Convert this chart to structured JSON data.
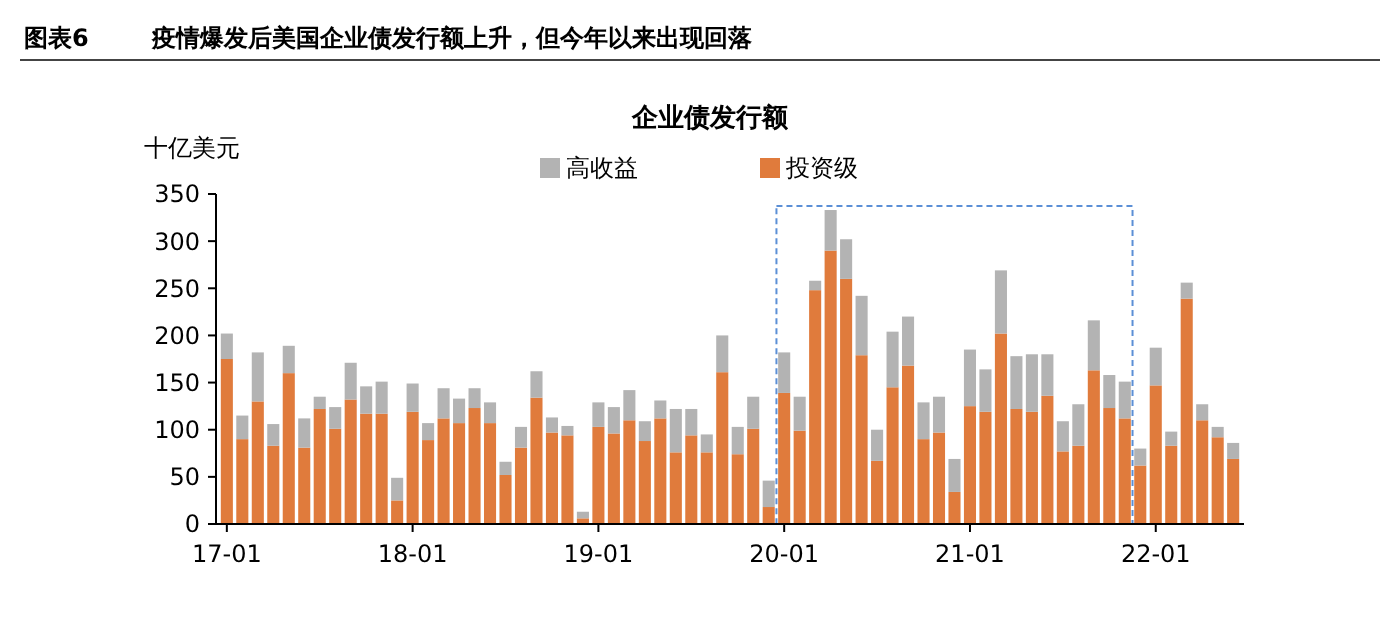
{
  "chart_data": {
    "type": "bar",
    "title": "企业债发行额",
    "ylabel": "十亿美元",
    "annotations": [
      "图表6",
      "疫情爆发后美国企业债发行额上升，但今年以来出现回落"
    ],
    "categories": [
      "17-01",
      null,
      null,
      null,
      null,
      null,
      null,
      null,
      null,
      null,
      null,
      null,
      "18-01",
      null,
      null,
      null,
      null,
      null,
      null,
      null,
      null,
      null,
      null,
      null,
      "19-01",
      null,
      null,
      null,
      null,
      null,
      null,
      null,
      null,
      null,
      null,
      null,
      "20-01",
      null,
      null,
      null,
      null,
      null,
      null,
      null,
      null,
      null,
      null,
      null,
      "21-01",
      null,
      null,
      null,
      null,
      null,
      null,
      null,
      null,
      null,
      null,
      null,
      "22-01",
      null,
      null,
      null,
      null,
      null
    ],
    "stacked": true,
    "series": [
      {
        "name": "投资级",
        "color": "#e07b3c",
        "values": [
          175,
          90,
          130,
          83,
          160,
          81,
          122,
          101,
          132,
          117,
          117,
          25,
          119,
          89,
          112,
          107,
          123,
          107,
          52,
          81,
          134,
          97,
          94,
          6,
          103,
          96,
          110,
          88,
          112,
          76,
          94,
          76,
          161,
          74,
          101,
          18,
          139,
          99,
          248,
          290,
          260,
          179,
          67,
          145,
          168,
          90,
          97,
          34,
          125,
          119,
          202,
          122,
          119,
          136,
          77,
          83,
          163,
          123,
          112,
          62,
          147,
          83,
          239,
          110,
          92,
          69
        ]
      },
      {
        "name": "高收益",
        "color": "#b3b3b3",
        "values": [
          27,
          25,
          52,
          23,
          29,
          31,
          13,
          23,
          39,
          29,
          34,
          24,
          30,
          18,
          32,
          26,
          21,
          22,
          14,
          22,
          28,
          16,
          10,
          7,
          26,
          28,
          32,
          21,
          19,
          46,
          28,
          19,
          39,
          29,
          34,
          28,
          43,
          36,
          10,
          43,
          42,
          63,
          33,
          59,
          52,
          39,
          38,
          35,
          60,
          45,
          67,
          56,
          61,
          44,
          32,
          44,
          53,
          35,
          39,
          18,
          40,
          15,
          17,
          17,
          11,
          17
        ]
      }
    ],
    "ylim": [
      0,
      350
    ],
    "yticks": [
      0,
      50,
      100,
      150,
      200,
      250,
      300,
      350
    ],
    "grid": false,
    "legend": "top"
  }
}
